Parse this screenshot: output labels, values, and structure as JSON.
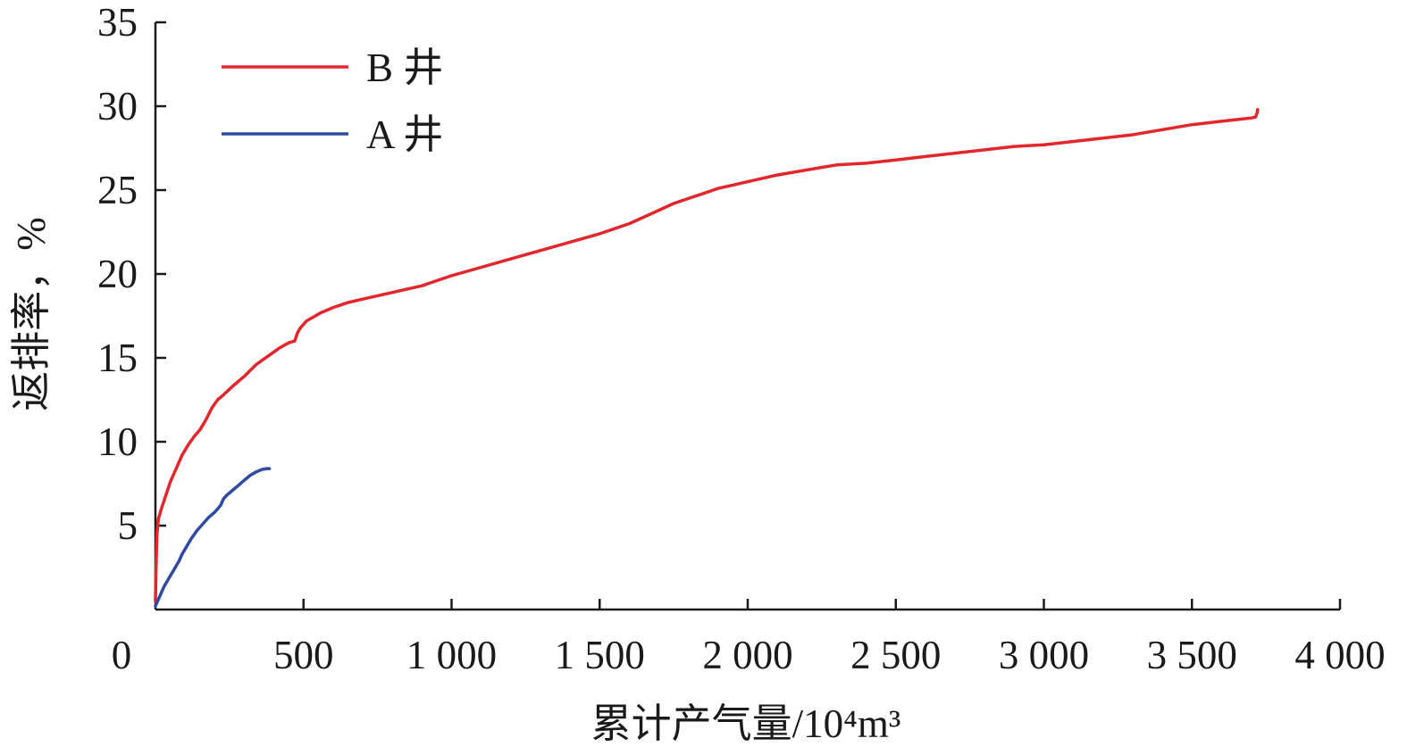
{
  "chart_data": {
    "type": "line",
    "xlabel": "累计产气量/10⁴m³",
    "ylabel": "返排率，%",
    "xlim": [
      0,
      4000
    ],
    "ylim": [
      0,
      35
    ],
    "x_ticks": [
      "0",
      "500",
      "1 000",
      "1 500",
      "2 000",
      "2 500",
      "3 000",
      "3 500",
      "4 000"
    ],
    "x_tick_values": [
      0,
      500,
      1000,
      1500,
      2000,
      2500,
      3000,
      3500,
      4000
    ],
    "y_ticks": [
      "5",
      "10",
      "15",
      "20",
      "25",
      "30",
      "35"
    ],
    "y_tick_values": [
      5,
      10,
      15,
      20,
      25,
      30,
      35
    ],
    "grid": false,
    "legend_position": "top-left",
    "series": [
      {
        "name": "B 井",
        "color": "#e3262c",
        "x": [
          0,
          2,
          5,
          10,
          20,
          35,
          50,
          70,
          90,
          110,
          130,
          150,
          170,
          190,
          210,
          230,
          260,
          300,
          340,
          380,
          420,
          450,
          470,
          480,
          490,
          510,
          530,
          560,
          600,
          650,
          700,
          750,
          800,
          850,
          900,
          950,
          1000,
          1100,
          1200,
          1300,
          1400,
          1500,
          1600,
          1650,
          1700,
          1750,
          1800,
          1850,
          1900,
          1950,
          2000,
          2100,
          2200,
          2300,
          2400,
          2500,
          2600,
          2700,
          2800,
          2900,
          3000,
          3100,
          3200,
          3300,
          3400,
          3500,
          3600,
          3700,
          3715,
          3720,
          3722
        ],
        "y": [
          0.5,
          2.5,
          4.5,
          5.4,
          6.0,
          6.8,
          7.6,
          8.4,
          9.2,
          9.8,
          10.3,
          10.7,
          11.3,
          12.0,
          12.5,
          12.8,
          13.3,
          13.9,
          14.6,
          15.1,
          15.6,
          15.9,
          16.0,
          16.5,
          16.8,
          17.2,
          17.4,
          17.7,
          18.0,
          18.3,
          18.5,
          18.7,
          18.9,
          19.1,
          19.3,
          19.6,
          19.9,
          20.4,
          20.9,
          21.4,
          21.9,
          22.4,
          23.0,
          23.4,
          23.8,
          24.2,
          24.5,
          24.8,
          25.1,
          25.3,
          25.5,
          25.9,
          26.2,
          26.5,
          26.6,
          26.8,
          27.0,
          27.2,
          27.4,
          27.6,
          27.7,
          27.9,
          28.1,
          28.3,
          28.6,
          28.9,
          29.1,
          29.3,
          29.35,
          29.6,
          29.8
        ]
      },
      {
        "name": "A 井",
        "color": "#2f4aa0",
        "x": [
          0,
          10,
          20,
          30,
          40,
          50,
          60,
          70,
          80,
          90,
          100,
          120,
          140,
          160,
          180,
          200,
          220,
          230,
          240,
          260,
          280,
          300,
          320,
          340,
          360,
          375,
          385
        ],
        "y": [
          0.2,
          0.6,
          1.0,
          1.4,
          1.7,
          2.0,
          2.3,
          2.6,
          2.9,
          3.3,
          3.6,
          4.2,
          4.7,
          5.1,
          5.5,
          5.8,
          6.2,
          6.6,
          6.8,
          7.1,
          7.4,
          7.7,
          8.0,
          8.2,
          8.35,
          8.4,
          8.4
        ]
      }
    ]
  }
}
